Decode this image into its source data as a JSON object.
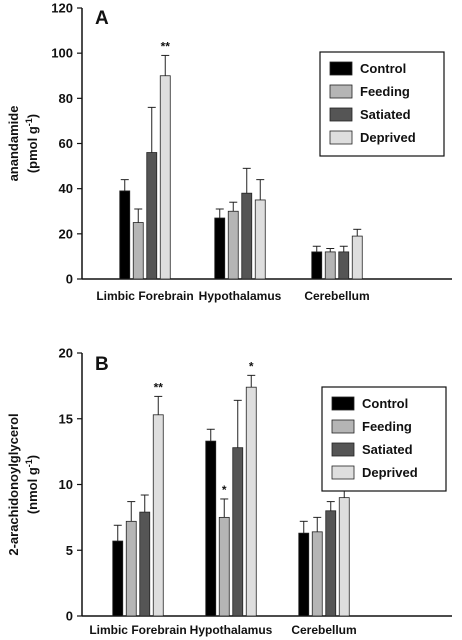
{
  "chart_data": [
    {
      "type": "bar",
      "panel": "A",
      "ylabel": "anandamide",
      "yunit": "(pmol g",
      "yunit_sup": "-1",
      "yunit_end": ")",
      "ylim": [
        0,
        120
      ],
      "yticks": [
        "0",
        "20",
        "40",
        "60",
        "80",
        "100",
        "120"
      ],
      "categories": [
        "Limbic Forebrain",
        "Hypothalamus",
        "Cerebellum"
      ],
      "legend_position": "top-right",
      "series": [
        {
          "name": "Control",
          "color": "#000000",
          "values": [
            39,
            27,
            12
          ],
          "errors": [
            5,
            4,
            2.5
          ],
          "sig": [
            "",
            "",
            ""
          ]
        },
        {
          "name": "Feeding",
          "color": "#b5b5b5",
          "values": [
            25,
            30,
            12
          ],
          "errors": [
            6,
            4,
            1.5
          ],
          "sig": [
            "",
            "",
            ""
          ]
        },
        {
          "name": "Satiated",
          "color": "#555555",
          "values": [
            56,
            38,
            12
          ],
          "errors": [
            20,
            11,
            2.5
          ],
          "sig": [
            "",
            "",
            ""
          ]
        },
        {
          "name": "Deprived",
          "color": "#dedede",
          "values": [
            90,
            35,
            19
          ],
          "errors": [
            9,
            9,
            3
          ],
          "sig": [
            "**",
            "",
            ""
          ]
        }
      ]
    },
    {
      "type": "bar",
      "panel": "B",
      "ylabel": "2-arachidonoylglycerol",
      "yunit": "(nmol g",
      "yunit_sup": "-1",
      "yunit_end": ")",
      "ylim": [
        0,
        20
      ],
      "yticks": [
        "0",
        "5",
        "10",
        "15",
        "20"
      ],
      "categories": [
        "Limbic Forebrain",
        "Hypothalamus",
        "Cerebellum"
      ],
      "legend_position": "top-right",
      "series": [
        {
          "name": "Control",
          "color": "#000000",
          "values": [
            5.7,
            13.3,
            6.3
          ],
          "errors": [
            1.2,
            0.9,
            0.9
          ],
          "sig": [
            "",
            "",
            ""
          ]
        },
        {
          "name": "Feeding",
          "color": "#b5b5b5",
          "values": [
            7.2,
            7.5,
            6.4
          ],
          "errors": [
            1.5,
            1.4,
            1.1
          ],
          "sig": [
            "",
            "*",
            ""
          ]
        },
        {
          "name": "Satiated",
          "color": "#555555",
          "values": [
            7.9,
            12.8,
            8.0
          ],
          "errors": [
            1.3,
            3.6,
            0.7
          ],
          "sig": [
            "",
            "",
            ""
          ]
        },
        {
          "name": "Deprived",
          "color": "#dedede",
          "values": [
            15.3,
            17.4,
            9.0
          ],
          "errors": [
            1.4,
            0.9,
            0.7
          ],
          "sig": [
            "**",
            "*",
            ""
          ]
        }
      ]
    }
  ]
}
